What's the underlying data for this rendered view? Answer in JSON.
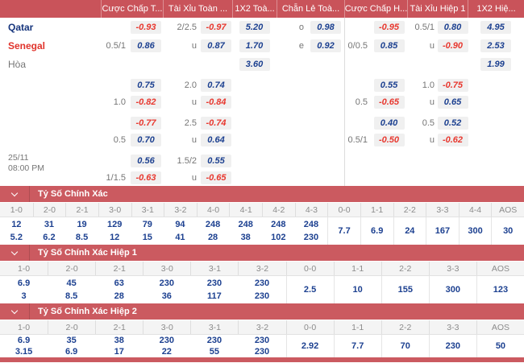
{
  "colors": {
    "header_red": "#c9535a",
    "section_red": "#cb5a60",
    "odds_navy": "#1c4090",
    "odds_neg_red": "#e8382f",
    "box_bg": "#f0f0f0"
  },
  "odds_table": {
    "col_headers": [
      "Cược Chấp T...",
      "Tài Xỉu Toàn ...",
      "1X2 Toà...",
      "Chẵn Lẻ Toà...",
      "Cược Chấp H...",
      "Tài Xỉu Hiệp 1",
      "1X2 Hiệ..."
    ],
    "match": {
      "date": "25/11",
      "time": "08:00 PM"
    },
    "rows": {
      "qatar": {
        "name": "Qatar",
        "ah_odds": "-0.93",
        "ou_line": "2/2.5",
        "ou_odds": "-0.97",
        "x2": "5.20",
        "oe_side": "o",
        "oe_odds": "0.98",
        "ah1_odds": "-0.95",
        "ou1_line": "0.5/1",
        "ou1_odds": "0.80",
        "x21": "4.95"
      },
      "senegal": {
        "name": "Senegal",
        "ah_line": "0.5/1",
        "ah_odds": "0.86",
        "ou_line": "u",
        "ou_odds": "0.87",
        "x2": "1.70",
        "oe_side": "e",
        "oe_odds": "0.92",
        "ah1_line": "0/0.5",
        "ah1_odds": "0.85",
        "ou1_line": "u",
        "ou1_odds": "-0.90",
        "x21": "2.53"
      },
      "draw": {
        "name": "Hòa",
        "x2": "3.60",
        "x21": "1.99"
      },
      "alt1a": {
        "ah_odds": "0.75",
        "ou_line": "2.0",
        "ou_odds": "0.74",
        "ah1_odds": "0.55",
        "ou1_line": "1.0",
        "ou1_odds": "-0.75"
      },
      "alt1b": {
        "ah_line": "1.0",
        "ah_odds": "-0.82",
        "ou_line": "u",
        "ou_odds": "-0.84",
        "ah1_line": "0.5",
        "ah1_odds": "-0.65",
        "ou1_line": "u",
        "ou1_odds": "0.65"
      },
      "alt2a": {
        "ah_odds": "-0.77",
        "ou_line": "2.5",
        "ou_odds": "-0.74",
        "ah1_odds": "0.40",
        "ou1_line": "0.5",
        "ou1_odds": "0.52"
      },
      "alt2b": {
        "ah_line": "0.5",
        "ah_odds": "0.70",
        "ou_line": "u",
        "ou_odds": "0.64",
        "ah1_line": "0.5/1",
        "ah1_odds": "-0.50",
        "ou1_line": "u",
        "ou1_odds": "-0.62"
      },
      "alt3a": {
        "ah_odds": "0.56",
        "ou_line": "1.5/2",
        "ou_odds": "0.55"
      },
      "alt3b": {
        "ah_line": "1/1.5",
        "ah_odds": "-0.63",
        "ou_line": "u",
        "ou_odds": "-0.65"
      }
    }
  },
  "sections": [
    {
      "title": "Tỷ Số Chính Xác",
      "columns": [
        "1-0",
        "2-0",
        "2-1",
        "3-0",
        "3-1",
        "3-2",
        "4-0",
        "4-1",
        "4-2",
        "4-3",
        "0-0",
        "1-1",
        "2-2",
        "3-3",
        "4-4",
        "AOS"
      ],
      "stacked": [
        [
          "12",
          "5.2"
        ],
        [
          "31",
          "6.2"
        ],
        [
          "19",
          "8.5"
        ],
        [
          "129",
          "12"
        ],
        [
          "79",
          "15"
        ],
        [
          "94",
          "41"
        ],
        [
          "248",
          "28"
        ],
        [
          "248",
          "38"
        ],
        [
          "248",
          "102"
        ],
        [
          "248",
          "230"
        ]
      ],
      "single": [
        "7.7",
        "6.9",
        "24",
        "167",
        "300",
        "30"
      ]
    },
    {
      "title": "Tỷ Số Chính Xác Hiệp 1",
      "columns": [
        "1-0",
        "2-0",
        "2-1",
        "3-0",
        "3-1",
        "3-2",
        "0-0",
        "1-1",
        "2-2",
        "3-3",
        "AOS"
      ],
      "stacked": [
        [
          "6.9",
          "3"
        ],
        [
          "45",
          "8.5"
        ],
        [
          "63",
          "28"
        ],
        [
          "230",
          "36"
        ],
        [
          "230",
          "117"
        ],
        [
          "230",
          "230"
        ]
      ],
      "single": [
        "2.5",
        "10",
        "155",
        "300",
        "123"
      ]
    },
    {
      "title": "Tỷ Số Chính Xác Hiệp 2",
      "columns": [
        "1-0",
        "2-0",
        "2-1",
        "3-0",
        "3-1",
        "3-2",
        "0-0",
        "1-1",
        "2-2",
        "3-3",
        "AOS"
      ],
      "stacked": [
        [
          "6.9",
          "3.15"
        ],
        [
          "35",
          "6.9"
        ],
        [
          "38",
          "17"
        ],
        [
          "230",
          "22"
        ],
        [
          "230",
          "55"
        ],
        [
          "230",
          "230"
        ]
      ],
      "single": [
        "2.92",
        "7.7",
        "70",
        "230",
        "50"
      ]
    }
  ]
}
